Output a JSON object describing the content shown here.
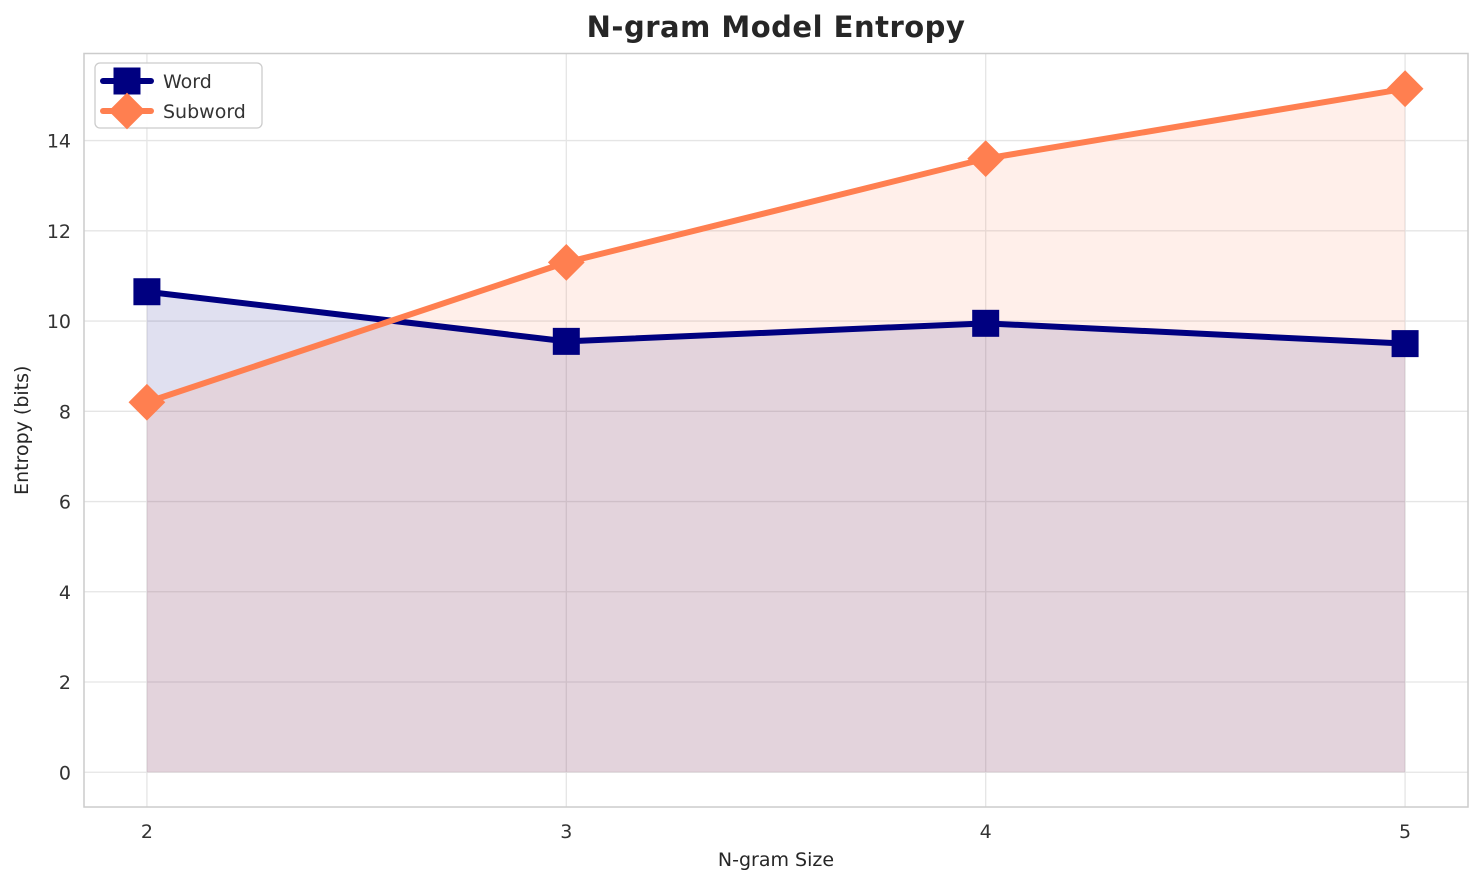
{
  "chart_data": {
    "type": "line",
    "title": "N-gram Model Entropy",
    "xlabel": "N-gram Size",
    "ylabel": "Entropy (bits)",
    "x": [
      2,
      3,
      4,
      5
    ],
    "series": [
      {
        "name": "Word",
        "values": [
          10.65,
          9.55,
          9.95,
          9.5
        ],
        "color": "#000080",
        "marker": "square"
      },
      {
        "name": "Subword",
        "values": [
          8.2,
          11.3,
          13.6,
          15.15
        ],
        "color": "#FF7F50",
        "marker": "diamond"
      }
    ],
    "xticks": [
      "2",
      "3",
      "4",
      "5"
    ],
    "xtick_values": [
      2,
      3,
      4,
      5
    ],
    "yticks": [
      "0",
      "2",
      "4",
      "6",
      "8",
      "10",
      "12",
      "14"
    ],
    "ytick_values": [
      0,
      2,
      4,
      6,
      8,
      10,
      12,
      14
    ],
    "xlim": [
      1.85,
      5.15
    ],
    "ylim": [
      -0.77,
      15.93
    ],
    "grid": true,
    "fill_to_zero": true,
    "fill_opacity": 0.12,
    "legend_position": "upper left",
    "colors": {
      "grid": "#e5e5e5",
      "spine": "#cccccc",
      "tick_text": "#333333",
      "label_text": "#262626",
      "legend_border": "#cccccc",
      "legend_bg": "#ffffff",
      "background": "#ffffff"
    }
  }
}
